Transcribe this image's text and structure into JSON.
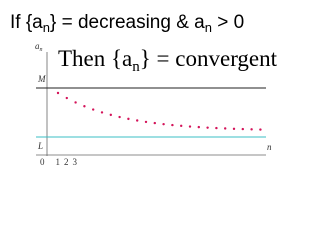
{
  "heading": {
    "line1": [
      "If {a",
      "n",
      "} =  decreasing & a",
      "n",
      " > 0"
    ],
    "line2": [
      "Then {a",
      "n",
      "} = convergent"
    ]
  },
  "graph": {
    "y_label": [
      "a",
      "n"
    ],
    "upper_bound": "M",
    "lower_bound": "L",
    "origin": "0",
    "x_ticks": [
      "1",
      "2",
      "3"
    ],
    "x_label": "n"
  }
}
